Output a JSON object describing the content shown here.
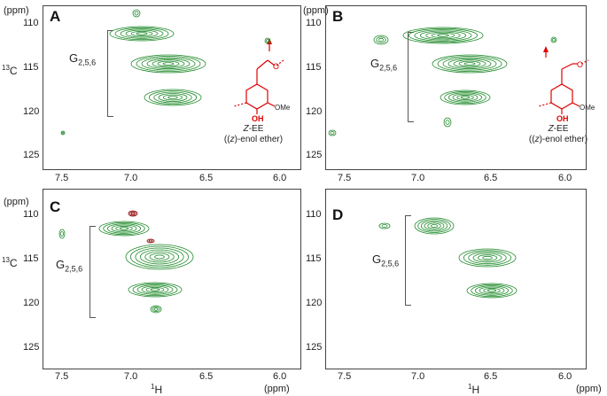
{
  "panels": {
    "A": {
      "label": "A",
      "group_label": "G",
      "group_sub": "2,5,6",
      "compound": "Z-EE",
      "compound_desc": "((z)-enol ether)",
      "ome": "OMe",
      "oh": "OH"
    },
    "B": {
      "label": "B",
      "group_label": "G",
      "group_sub": "2,5,6",
      "compound": "Z-EE",
      "compound_desc": "((z)-enol ether)",
      "ome": "OMe",
      "oh": "OH"
    },
    "C": {
      "label": "C",
      "group_label": "G",
      "group_sub": "2,5,6"
    },
    "D": {
      "label": "D",
      "group_label": "G",
      "group_sub": "2,5,6"
    }
  },
  "axes": {
    "y_unit": "(ppm)",
    "x_unit": "(ppm)",
    "y_nucleus": "13C",
    "x_nucleus": "1H",
    "y_ticks": [
      "110",
      "115",
      "120",
      "125"
    ],
    "x_ticks": [
      "7.5",
      "7.0",
      "6.5",
      "6.0"
    ]
  },
  "colors": {
    "contour": "#1f8a2a",
    "negative": "#8b0000",
    "annotation": "#e00000"
  }
}
